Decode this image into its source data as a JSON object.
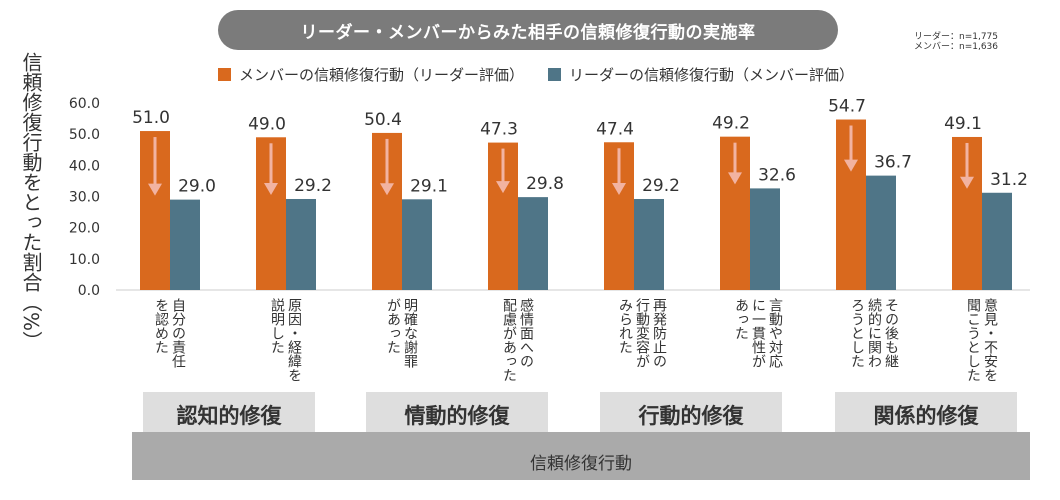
{
  "header": {
    "title": "リーダー・メンバーからみた相手の信頼修復行動の実施率",
    "n_note": [
      "リーダー：n=1,775",
      "メンバー：n=1,636"
    ]
  },
  "colors": {
    "orange": "#d9691e",
    "teal": "#4f7587",
    "arrow": "#f2b3a1"
  },
  "groups": [
    "認知的修復",
    "情動的修復",
    "行動的修復",
    "関係的修復"
  ],
  "bottom_label": "信頼修復行動",
  "chart_data": {
    "type": "bar",
    "ylabel": "信頼修復行動をとった割合（%）",
    "ylim": [
      0,
      60
    ],
    "yticks": [
      "0.0",
      "10.0",
      "20.0",
      "30.0",
      "40.0",
      "50.0",
      "60.0"
    ],
    "categories": [
      "自分の責任\nを認めた",
      "原因・経緯を\n説明した",
      "明確な謝罪\nがあった",
      "感情面への\n配慮があった",
      "再発防止の\n行動変容が\nみられた",
      "言動や対応\nに一貫性が\nあった",
      "その後も継\n続的に関わ\nろうとした",
      "意見・不安を\n聞こうとした"
    ],
    "series": [
      {
        "name": "メンバーの信頼修復行動（リーダー評価）",
        "values": [
          51.0,
          49.0,
          50.4,
          47.3,
          47.4,
          49.2,
          54.7,
          49.1
        ]
      },
      {
        "name": "リーダーの信頼修復行動（メンバー評価）",
        "values": [
          29.0,
          29.2,
          29.1,
          29.8,
          29.2,
          32.6,
          36.7,
          31.2
        ]
      }
    ]
  }
}
